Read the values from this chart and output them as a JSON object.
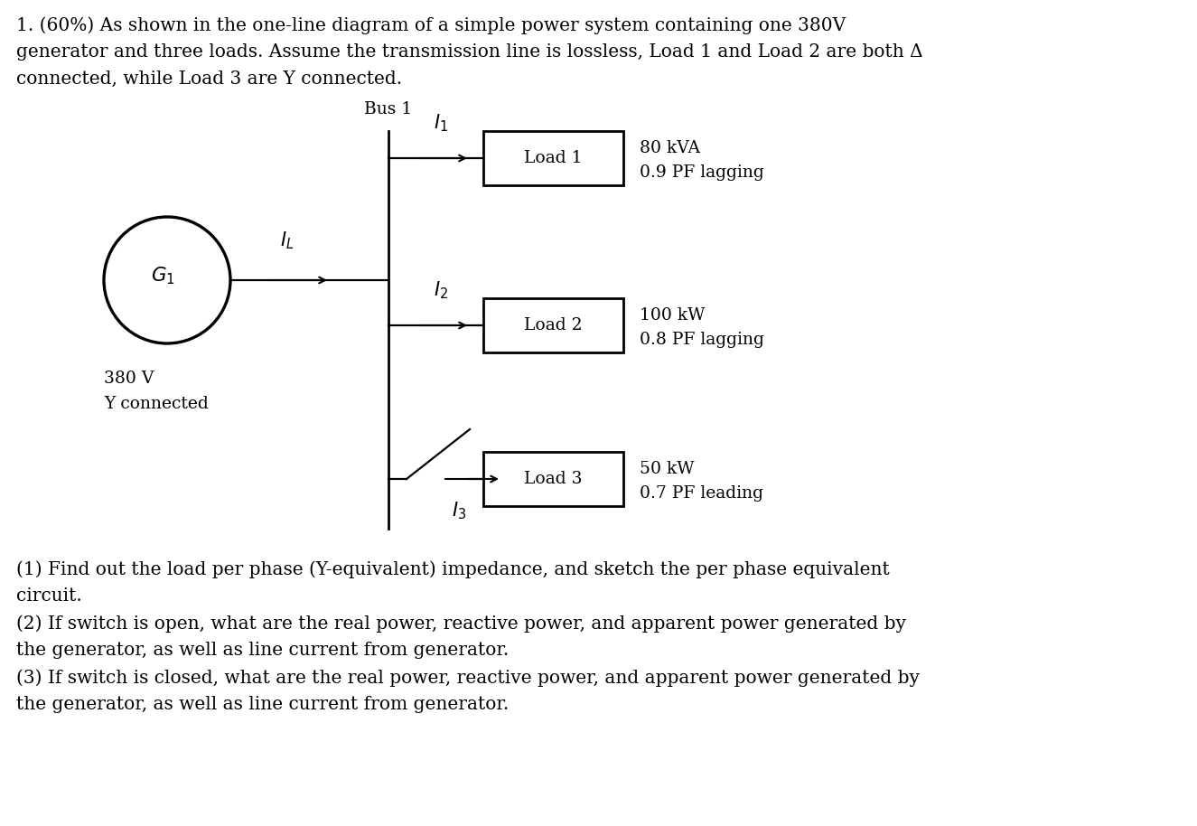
{
  "bg_color": "#ffffff",
  "text_color": "#000000",
  "title_line1": "1. (60%) As shown in the one-line diagram of a simple power system containing one 380V",
  "title_line2": "generator and three loads. Assume the transmission line is lossless, Load 1 and Load 2 are both Δ",
  "title_line3": "connected, while Load 3 are Y connected.",
  "footer_line1": "(1) Find out the load per phase (Y-equivalent) impedance, and sketch the per phase equivalent",
  "footer_line2": "circuit.",
  "footer_line3": "(2) If switch is open, what are the real power, reactive power, and apparent power generated by",
  "footer_line4": "the generator, as well as line current from generator.",
  "footer_line5": "(3) If switch is closed, what are the real power, reactive power, and apparent power generated by",
  "footer_line6": "the generator, as well as line current from generator.",
  "bus1_label": "Bus 1",
  "generator_voltage": "380 V",
  "generator_connection": "Y connected",
  "load1_label": "Load 1",
  "load1_spec1": "80 kVA",
  "load1_spec2": "0.9 PF lagging",
  "load2_label": "Load 2",
  "load2_spec1": "100 kW",
  "load2_spec2": "0.8 PF lagging",
  "load3_label": "Load 3",
  "load3_spec1": "50 kW",
  "load3_spec2": "0.7 PF leading",
  "font_size_body": 14.5,
  "font_size_diagram": 13.5,
  "font_size_math": 14,
  "lw": 1.6
}
